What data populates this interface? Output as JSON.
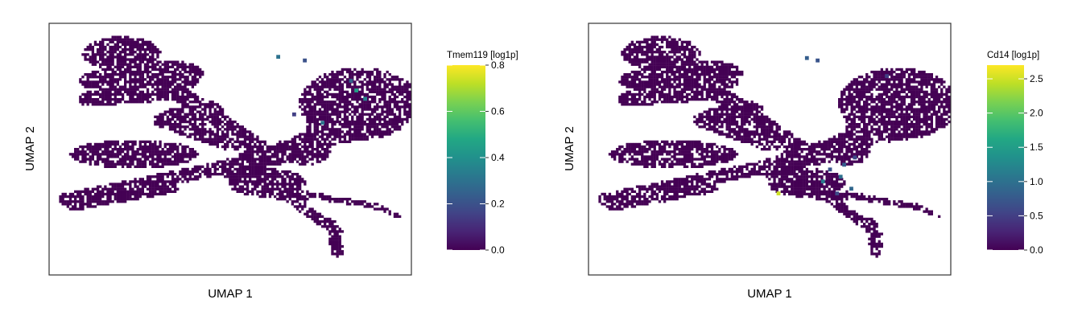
{
  "colors": {
    "colormap": "viridis",
    "panel_border": "#333333",
    "background": "#ffffff"
  },
  "chart_data": [
    {
      "type": "scatter",
      "title": "",
      "xlabel": "UMAP 1",
      "ylabel": "UMAP 2",
      "colorbar_label": "Tmem119 [log1p]",
      "colorbar_ticks": [
        "0.0",
        "0.2",
        "0.4",
        "0.6",
        "0.8"
      ],
      "color_range": [
        0.0,
        0.8
      ],
      "point_shape": "hexbin",
      "grid": false,
      "points": [
        {
          "x": 0.27,
          "y": 0.74,
          "value": 0.3
        },
        {
          "x": 0.71,
          "y": 0.46,
          "value": 0.45
        },
        {
          "x": 0.76,
          "y": 0.39,
          "value": 0.35
        },
        {
          "x": 0.68,
          "y": 0.54,
          "value": 0.25
        },
        {
          "x": 0.42,
          "y": 0.71,
          "value": 0.2
        },
        {
          "x": 0.52,
          "y": 0.19,
          "value": 0.3
        },
        {
          "x": 0.36,
          "y": 0.26,
          "value": 0.15
        }
      ]
    },
    {
      "type": "scatter",
      "title": "",
      "xlabel": "UMAP 1",
      "ylabel": "UMAP 2",
      "colorbar_label": "Cd14 [log1p]",
      "colorbar_ticks": [
        "0.0",
        "0.5",
        "1.0",
        "1.5",
        "2.0",
        "2.5"
      ],
      "color_range": [
        0.0,
        2.7
      ],
      "point_shape": "hexbin",
      "grid": false,
      "points": [
        {
          "x": 0.05,
          "y": -0.4,
          "value": 2.5
        },
        {
          "x": 0.3,
          "y": -0.3,
          "value": 1.1
        },
        {
          "x": 0.4,
          "y": -0.26,
          "value": 1.0
        },
        {
          "x": 0.46,
          "y": -0.36,
          "value": 0.9
        },
        {
          "x": 0.34,
          "y": -0.2,
          "value": 0.7
        },
        {
          "x": 0.21,
          "y": 0.73,
          "value": 0.8
        },
        {
          "x": 0.27,
          "y": 0.71,
          "value": 0.7
        },
        {
          "x": 0.42,
          "y": -0.16,
          "value": 0.8
        },
        {
          "x": 0.48,
          "y": -0.1,
          "value": 0.6
        },
        {
          "x": 0.38,
          "y": -0.4,
          "value": 0.6
        },
        {
          "x": 0.66,
          "y": 0.58,
          "value": 0.5
        }
      ]
    }
  ]
}
